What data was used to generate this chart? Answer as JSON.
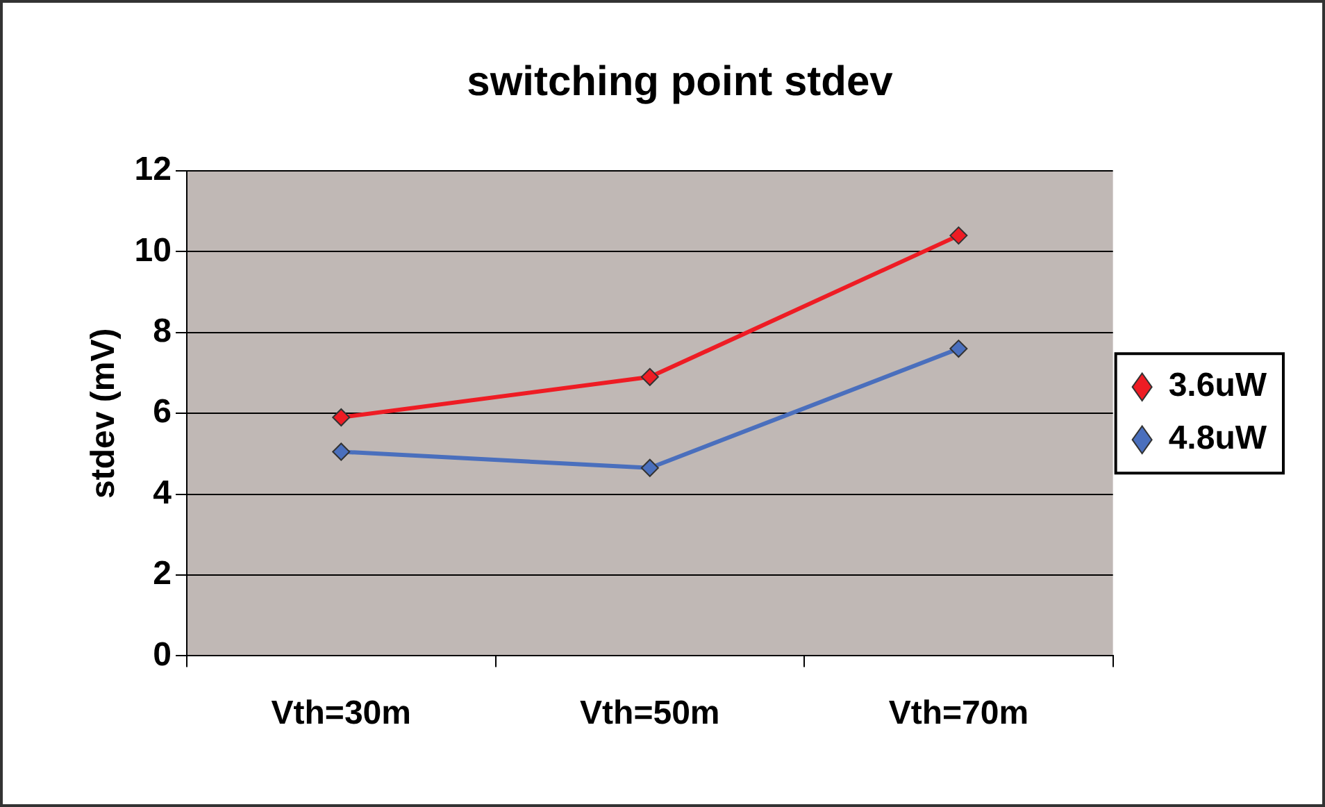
{
  "chart_data": {
    "type": "line",
    "title": "switching point stdev",
    "ylabel": "stdev (mV)",
    "categories": [
      "Vth=30m",
      "Vth=50m",
      "Vth=70m"
    ],
    "series": [
      {
        "name": "3.6uW",
        "color": "#ee1c24",
        "values": [
          5.9,
          6.9,
          10.4
        ]
      },
      {
        "name": "4.8uW",
        "color": "#4a6fbd",
        "values": [
          5.05,
          4.65,
          7.6
        ]
      }
    ],
    "ylim": [
      0,
      12
    ],
    "yticks": [
      0,
      2,
      4,
      6,
      8,
      10,
      12
    ],
    "grid": "y",
    "legend": "right",
    "marker": "diamond",
    "line_style": "solid"
  }
}
